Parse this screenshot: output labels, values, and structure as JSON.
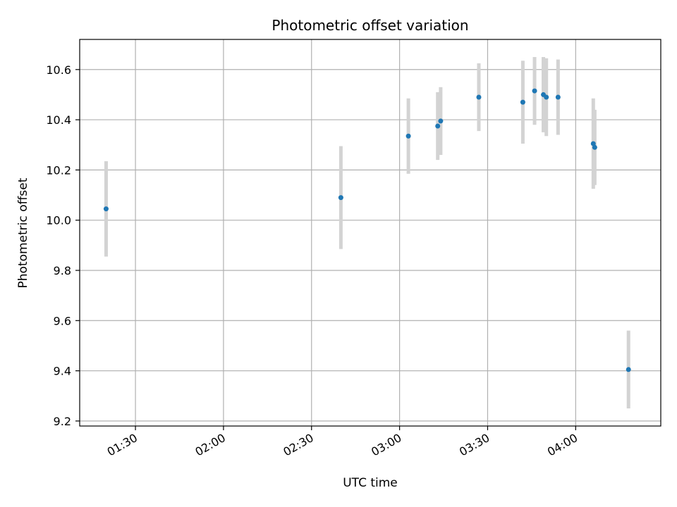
{
  "chart_data": {
    "type": "scatter",
    "title": "Photometric offset variation",
    "xlabel": "UTC time",
    "ylabel": "Photometric offset",
    "xlim": [
      "01:11",
      "04:29"
    ],
    "ylim": [
      9.18,
      10.72
    ],
    "x_ticks": [
      "01:30",
      "02:00",
      "02:30",
      "03:00",
      "03:30",
      "04:00"
    ],
    "y_ticks": [
      9.2,
      9.4,
      9.6,
      9.8,
      10.0,
      10.2,
      10.4,
      10.6
    ],
    "grid": true,
    "colors": {
      "point": "#1f77b4",
      "errorbar": "#d3d3d3",
      "grid": "#b0b0b0"
    },
    "points": [
      {
        "time": "01:20",
        "y": 10.045,
        "err": 0.19
      },
      {
        "time": "02:40",
        "y": 10.09,
        "err": 0.205
      },
      {
        "time": "03:03",
        "y": 10.335,
        "err": 0.15
      },
      {
        "time": "03:13",
        "y": 10.375,
        "err": 0.135
      },
      {
        "time": "03:14",
        "y": 10.395,
        "err": 0.135
      },
      {
        "time": "03:27",
        "y": 10.49,
        "err": 0.135
      },
      {
        "time": "03:42",
        "y": 10.47,
        "err": 0.165
      },
      {
        "time": "03:46",
        "y": 10.515,
        "err": 0.135
      },
      {
        "time": "03:49",
        "y": 10.5,
        "err": 0.15
      },
      {
        "time": "03:50",
        "y": 10.49,
        "err": 0.155
      },
      {
        "time": "03:54",
        "y": 10.49,
        "err": 0.15
      },
      {
        "time": "04:06",
        "y": 10.305,
        "err": 0.18
      },
      {
        "time": "04:06:30",
        "y": 10.29,
        "err": 0.15
      },
      {
        "time": "04:18",
        "y": 9.405,
        "err": 0.155
      }
    ]
  }
}
